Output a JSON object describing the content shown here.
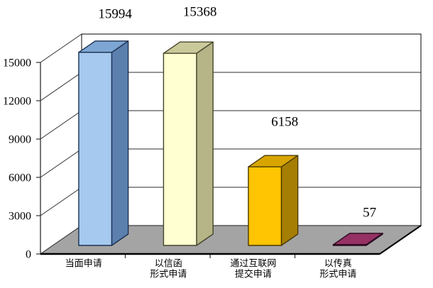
{
  "chart_data": {
    "type": "bar",
    "style": "3d-column",
    "title": "",
    "xlabel": "",
    "ylabel": "",
    "categories": [
      "当面申请",
      "以信函形式申请",
      "通过互联网提交申请",
      "以传真形式申请"
    ],
    "category_label_lines": [
      [
        "当面申请"
      ],
      [
        "以信函",
        "形式申请"
      ],
      [
        "通过互联网",
        "提交申请"
      ],
      [
        "以传真",
        "形式申请"
      ]
    ],
    "values": [
      15994,
      15368,
      6158,
      57
    ],
    "data_labels": [
      "15994",
      "15368",
      "6158",
      "57"
    ],
    "ylim": [
      0,
      15000
    ],
    "ytick_interval": 3000,
    "ytick_labels": [
      "0",
      "3000",
      "6000",
      "9000",
      "12000",
      "15000"
    ],
    "grid": true,
    "legend": false,
    "colors": {
      "series_faces": [
        {
          "name": "light-blue",
          "front": "#A6CAEF",
          "top": "#7EA6D4",
          "side": "#5C80AE",
          "edge": "#1C3150"
        },
        {
          "name": "cream",
          "front": "#FFFFD2",
          "top": "#C9C99A",
          "side": "#B5B588",
          "edge": "#45452A"
        },
        {
          "name": "gold",
          "front": "#FFC402",
          "top": "#D8A500",
          "side": "#A67E04",
          "edge": "#4A3A00"
        },
        {
          "name": "plum",
          "front": "#6F2449",
          "top": "#953164",
          "side": "#5E1E3D",
          "edge": "#27091C"
        }
      ],
      "floor": "#A4A4A4",
      "wall": "#FFFFFF",
      "line": "#2E2E2E",
      "background": "#FFFFFF",
      "text": "#000000"
    }
  }
}
